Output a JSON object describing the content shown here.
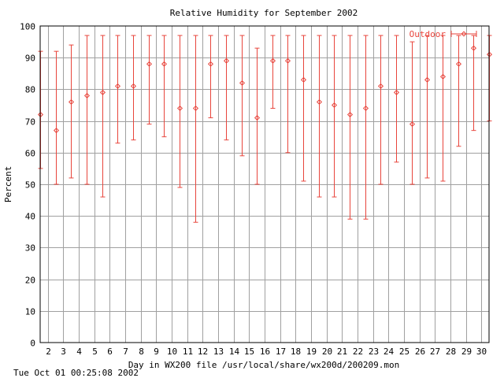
{
  "chart_data": {
    "type": "scatter",
    "title": "Relative Humidity for September 2002",
    "xlabel": "Day in WX200 file /usr/local/share/wx200d/200209.mon",
    "ylabel": "Percent",
    "footer": "Tue Oct 01 00:25:08 2002",
    "xlim": [
      1.5,
      30.5
    ],
    "ylim": [
      0,
      100
    ],
    "x_ticks": [
      2,
      3,
      4,
      5,
      6,
      7,
      8,
      9,
      10,
      11,
      12,
      13,
      14,
      15,
      16,
      17,
      18,
      19,
      20,
      21,
      22,
      23,
      24,
      25,
      26,
      27,
      28,
      29,
      30
    ],
    "y_ticks": [
      0,
      10,
      20,
      30,
      40,
      50,
      60,
      70,
      80,
      90,
      100
    ],
    "grid": true,
    "legend_position": "top-right",
    "series": [
      {
        "name": "Outdoor",
        "color": "#e8453c",
        "points": [
          {
            "x": 1.5,
            "y": 72,
            "low": 55,
            "high": 92
          },
          {
            "x": 2.5,
            "y": 67,
            "low": 50,
            "high": 92
          },
          {
            "x": 3.5,
            "y": 76,
            "low": 52,
            "high": 94
          },
          {
            "x": 4.5,
            "y": 78,
            "low": 50,
            "high": 97
          },
          {
            "x": 5.5,
            "y": 79,
            "low": 46,
            "high": 97
          },
          {
            "x": 6.5,
            "y": 81,
            "low": 63,
            "high": 97
          },
          {
            "x": 7.5,
            "y": 81,
            "low": 64,
            "high": 97
          },
          {
            "x": 8.5,
            "y": 88,
            "low": 69,
            "high": 97
          },
          {
            "x": 9.5,
            "y": 88,
            "low": 65,
            "high": 97
          },
          {
            "x": 10.5,
            "y": 74,
            "low": 49,
            "high": 97
          },
          {
            "x": 11.5,
            "y": 74,
            "low": 38,
            "high": 97
          },
          {
            "x": 12.5,
            "y": 88,
            "low": 71,
            "high": 97
          },
          {
            "x": 13.5,
            "y": 89,
            "low": 64,
            "high": 97
          },
          {
            "x": 14.5,
            "y": 82,
            "low": 59,
            "high": 97
          },
          {
            "x": 15.5,
            "y": 71,
            "low": 50,
            "high": 93
          },
          {
            "x": 16.5,
            "y": 89,
            "low": 74,
            "high": 97
          },
          {
            "x": 17.5,
            "y": 89,
            "low": 60,
            "high": 97
          },
          {
            "x": 18.5,
            "y": 83,
            "low": 51,
            "high": 97
          },
          {
            "x": 19.5,
            "y": 76,
            "low": 46,
            "high": 97
          },
          {
            "x": 20.5,
            "y": 75,
            "low": 46,
            "high": 97
          },
          {
            "x": 21.5,
            "y": 72,
            "low": 39,
            "high": 97
          },
          {
            "x": 22.5,
            "y": 74,
            "low": 39,
            "high": 97
          },
          {
            "x": 23.5,
            "y": 81,
            "low": 50,
            "high": 97
          },
          {
            "x": 24.5,
            "y": 79,
            "low": 57,
            "high": 97
          },
          {
            "x": 25.5,
            "y": 69,
            "low": 50,
            "high": 95
          },
          {
            "x": 26.5,
            "y": 83,
            "low": 52,
            "high": 97
          },
          {
            "x": 27.5,
            "y": 84,
            "low": 51,
            "high": 97
          },
          {
            "x": 28.5,
            "y": 88,
            "low": 62,
            "high": 97
          },
          {
            "x": 29.5,
            "y": 93,
            "low": 67,
            "high": 97
          },
          {
            "x": 30.5,
            "y": 91,
            "low": 70,
            "high": 97
          }
        ]
      }
    ]
  }
}
